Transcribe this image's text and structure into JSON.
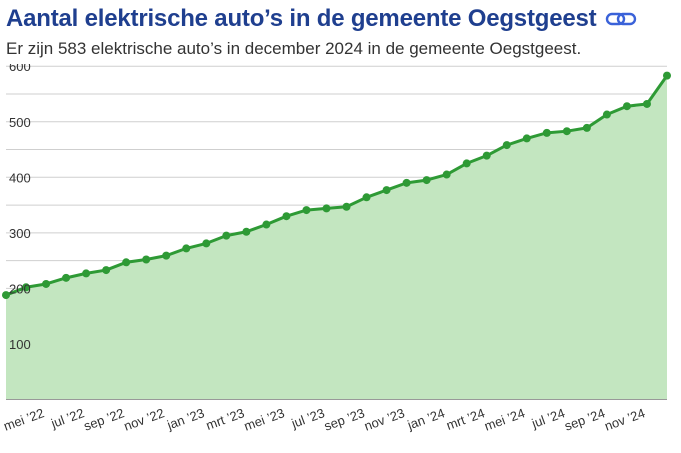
{
  "header": {
    "title": "Aantal elektrische auto’s in de gemeente Oegstgeest",
    "subtitle": "Er zijn 583 elektrische auto’s in december 2024 in de gemeente Oegstgeest.",
    "link_icon": "link-icon"
  },
  "colors": {
    "title": "#1f3f8f",
    "line": "#2e9a35",
    "area": "#c3e6c0",
    "link_icon": "#3a62d9"
  },
  "chart_data": {
    "type": "area",
    "title": "Aantal elektrische auto’s in de gemeente Oegstgeest",
    "y_ticks": [
      "100",
      "200",
      "300",
      "400",
      "500",
      "600"
    ],
    "x_tick_labels": [
      "mei ’22",
      "jul ’22",
      "sep ’22",
      "nov ’22",
      "jan ’23",
      "mrt ’23",
      "mei ’23",
      "jul ’23",
      "sep ’23",
      "nov ’23",
      "jan ’24",
      "mrt ’24",
      "mei ’24",
      "jul ’24",
      "sep ’24",
      "nov ’24"
    ],
    "x": [
      "2022-03",
      "2022-04",
      "2022-05",
      "2022-06",
      "2022-07",
      "2022-08",
      "2022-09",
      "2022-10",
      "2022-11",
      "2022-12",
      "2023-01",
      "2023-02",
      "2023-03",
      "2023-04",
      "2023-05",
      "2023-06",
      "2023-07",
      "2023-08",
      "2023-09",
      "2023-10",
      "2023-11",
      "2023-12",
      "2024-01",
      "2024-02",
      "2024-03",
      "2024-04",
      "2024-05",
      "2024-06",
      "2024-07",
      "2024-08",
      "2024-09",
      "2024-10",
      "2024-11",
      "2024-12"
    ],
    "series": [
      {
        "values": [
          188,
          202,
          208,
          219,
          227,
          233,
          247,
          252,
          259,
          272,
          281,
          295,
          302,
          315,
          330,
          341,
          344,
          347,
          364,
          377,
          390,
          395,
          405,
          425,
          439,
          458,
          470,
          480,
          483,
          489,
          513,
          528,
          532,
          583
        ]
      }
    ],
    "ylim": [
      0,
      620
    ],
    "grid": true,
    "legend": "none"
  }
}
